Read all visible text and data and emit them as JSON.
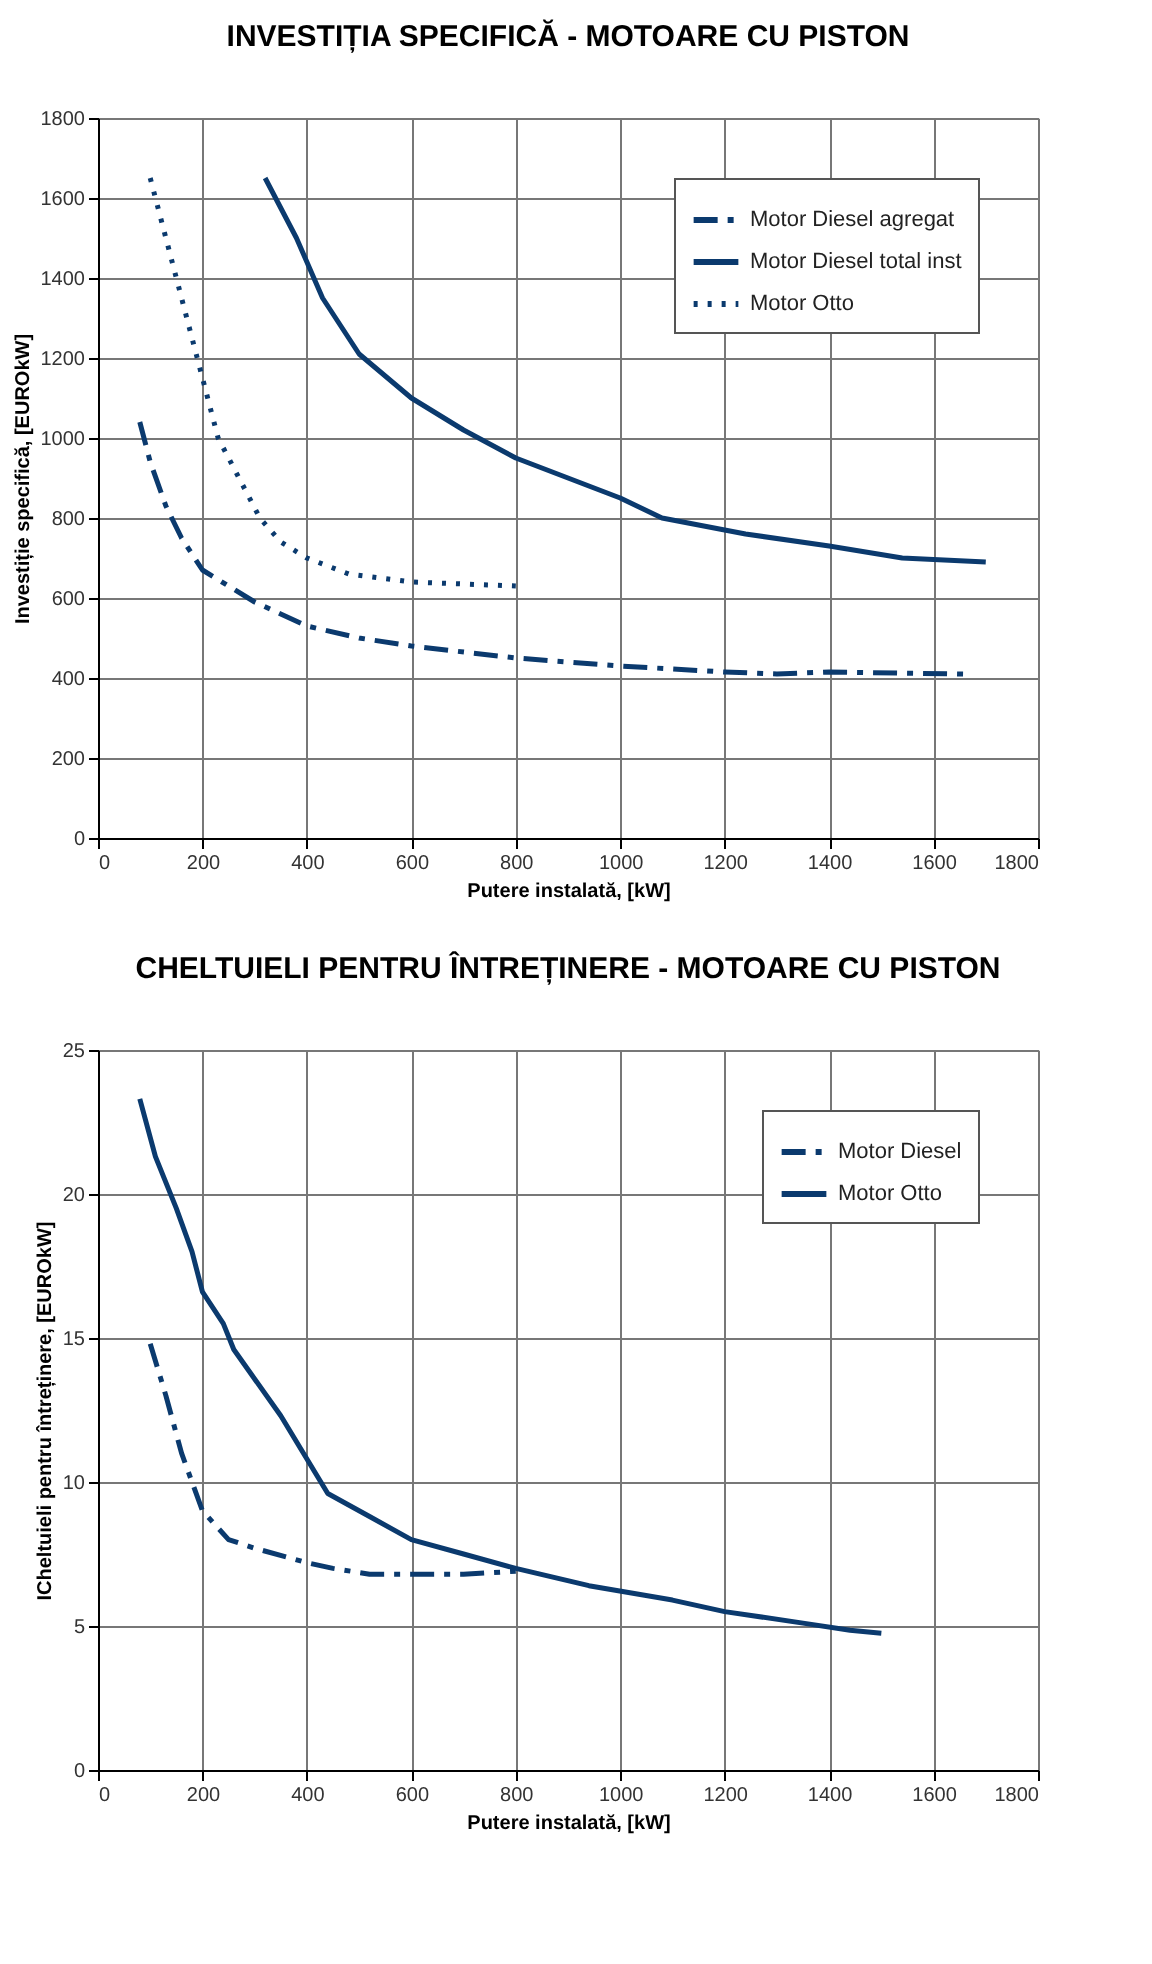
{
  "chart_data": [
    {
      "type": "line",
      "title": "INVESTIȚIA SPECIFICĂ - MOTOARE CU PISTON",
      "xlabel": "Putere instalată, [kW]",
      "ylabel": "Investiție specifică, [EUROkW]",
      "xlim": [
        0,
        1800
      ],
      "xticks": [
        0,
        200,
        400,
        600,
        800,
        1000,
        1200,
        1400,
        1600,
        1800
      ],
      "ylim": [
        0,
        1800
      ],
      "yticks": [
        0,
        200,
        400,
        600,
        800,
        1000,
        1200,
        1400,
        1600,
        1800
      ],
      "grid": true,
      "legend": "top right",
      "marker": "none",
      "series": [
        {
          "name": "Motor Diesel agregat",
          "color": "#0b3a6e",
          "line_style": "dashed",
          "x": [
            80,
            100,
            130,
            160,
            200,
            250,
            300,
            400,
            500,
            600,
            800,
            1000,
            1200,
            1300,
            1400,
            1660
          ],
          "values": [
            1040,
            940,
            830,
            750,
            670,
            630,
            590,
            530,
            500,
            480,
            450,
            430,
            415,
            410,
            415,
            410
          ]
        },
        {
          "name": "Motor Diesel total inst",
          "color": "#0b3a6e",
          "line_style": "solid",
          "x": [
            320,
            380,
            430,
            500,
            600,
            700,
            800,
            1000,
            1080,
            1240,
            1400,
            1540,
            1700
          ],
          "values": [
            1650,
            1500,
            1350,
            1210,
            1100,
            1020,
            950,
            850,
            800,
            760,
            730,
            700,
            690
          ]
        },
        {
          "name": "Motor Otto",
          "color": "#0b3a6e",
          "line_style": "dotted",
          "x": [
            100,
            120,
            150,
            180,
            200,
            230,
            270,
            310,
            350,
            400,
            480,
            600,
            800
          ],
          "values": [
            1650,
            1550,
            1400,
            1250,
            1150,
            1000,
            900,
            800,
            740,
            700,
            660,
            640,
            630
          ]
        }
      ]
    },
    {
      "type": "line",
      "title": "CHELTUIELI PENTRU ÎNTREȚINERE - MOTOARE CU PISTON",
      "xlabel": "Putere instalată, [kW]",
      "ylabel": "ICheltuieli pentru întreținere, [EUROkW]",
      "xlim": [
        0,
        1800
      ],
      "xticks": [
        0,
        200,
        400,
        600,
        800,
        1000,
        1200,
        1400,
        1600,
        1800
      ],
      "ylim": [
        0,
        25
      ],
      "yticks": [
        0,
        5,
        10,
        15,
        20,
        25
      ],
      "grid": true,
      "legend": "top right",
      "marker": "none",
      "series": [
        {
          "name": "Motor Diesel",
          "color": "#0b3a6e",
          "line_style": "dashed",
          "x": [
            100,
            130,
            160,
            180,
            200,
            250,
            300,
            400,
            450,
            520,
            600,
            700,
            800
          ],
          "values": [
            14.8,
            13,
            11,
            10,
            9,
            8,
            7.7,
            7.2,
            7,
            6.8,
            6.8,
            6.8,
            6.9
          ]
        },
        {
          "name": "Motor Otto",
          "color": "#0b3a6e",
          "line_style": "solid",
          "x": [
            80,
            110,
            150,
            180,
            200,
            240,
            260,
            350,
            440,
            520,
            600,
            700,
            800,
            940,
            1100,
            1200,
            1350,
            1440,
            1500
          ],
          "values": [
            23.3,
            21.3,
            19.5,
            18,
            16.6,
            15.5,
            14.6,
            12.3,
            9.6,
            8.8,
            8,
            7.5,
            7.0,
            6.4,
            5.9,
            5.5,
            5.1,
            4.85,
            4.75
          ]
        }
      ]
    }
  ]
}
